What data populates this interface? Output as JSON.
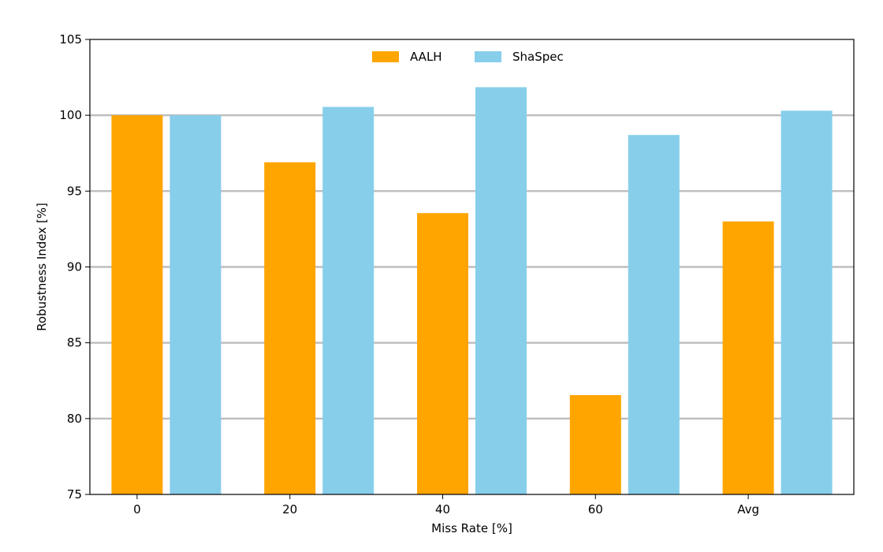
{
  "chart_data": {
    "type": "bar",
    "categories": [
      "0",
      "20",
      "40",
      "60",
      "Avg"
    ],
    "series": [
      {
        "name": "AALH",
        "color": "#FFA500",
        "values": [
          100.0,
          96.9,
          93.55,
          81.55,
          93.0
        ]
      },
      {
        "name": "ShaSpec",
        "color": "#87CEEB",
        "values": [
          100.0,
          100.55,
          101.85,
          98.7,
          100.3
        ]
      }
    ],
    "xlabel": "Miss Rate [%]",
    "ylabel": "Robustness Index [%]",
    "ylim": [
      75,
      105
    ],
    "yticks": [
      75,
      80,
      85,
      90,
      95,
      100,
      105
    ],
    "grid": "horizontal",
    "legend_position": "top-center"
  }
}
